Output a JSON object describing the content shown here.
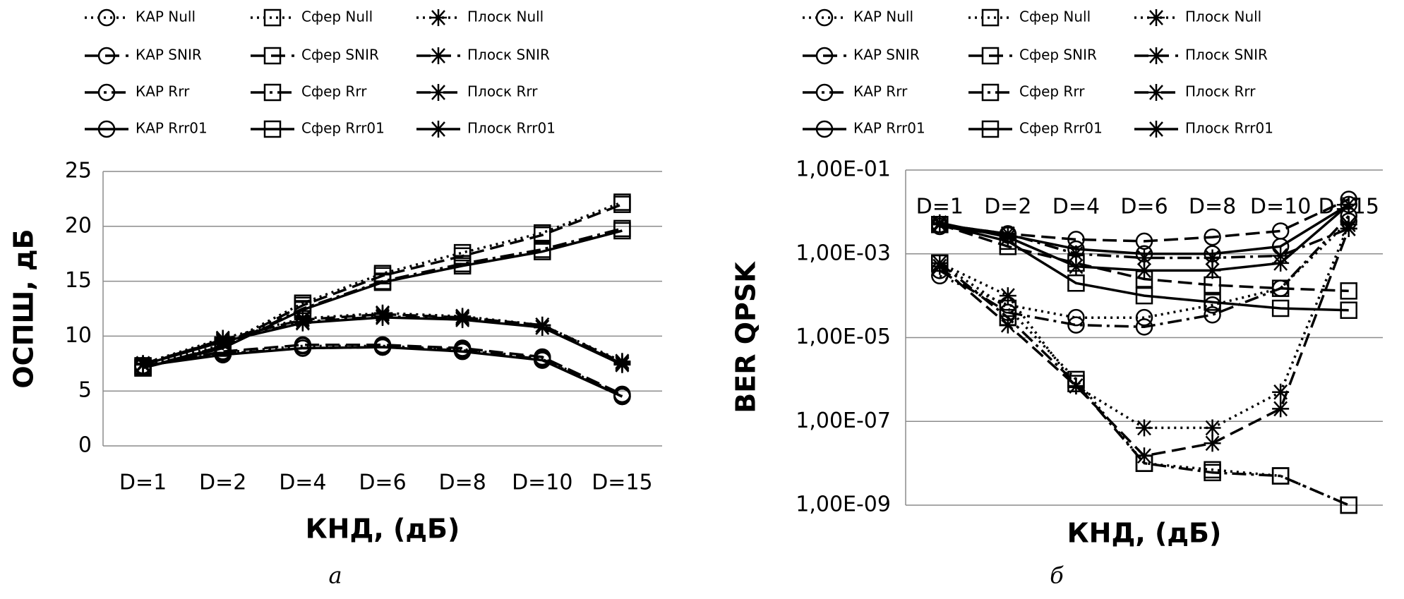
{
  "chart_data": [
    {
      "type": "line",
      "y_label": "ОСПШ, дБ",
      "x_label": "КНД, (дБ)",
      "caption": "а",
      "categories": [
        "D=1",
        "D=2",
        "D=4",
        "D=6",
        "D=8",
        "D=10",
        "D=15"
      ],
      "ylim": [
        0,
        25
      ],
      "yticks": [
        0,
        5,
        10,
        15,
        20,
        25
      ],
      "grid": true,
      "series": [
        {
          "name": "КАР Null",
          "color": "#000000",
          "dash": "dotted",
          "marker": "circle",
          "values": [
            7.3,
            8.5,
            9.1,
            9.1,
            8.8,
            8.0,
            4.6
          ]
        },
        {
          "name": "Сфер Null",
          "color": "#000000",
          "dash": "dotted",
          "marker": "square",
          "values": [
            7.3,
            9.2,
            13.0,
            15.7,
            17.6,
            19.4,
            22.2
          ]
        },
        {
          "name": "Плоск Null",
          "color": "#000000",
          "dash": "dotted",
          "marker": "star",
          "values": [
            7.5,
            9.8,
            11.6,
            12.1,
            11.8,
            11.0,
            7.7
          ]
        },
        {
          "name": "КАР SNIR",
          "color": "#000000",
          "dash": "dashed",
          "marker": "circle",
          "values": [
            7.2,
            8.6,
            9.2,
            9.2,
            8.9,
            8.1,
            4.7
          ]
        },
        {
          "name": "Сфер SNIR",
          "color": "#000000",
          "dash": "dashed",
          "marker": "square",
          "values": [
            7.1,
            9.1,
            12.8,
            15.5,
            17.3,
            19.2,
            22.0
          ]
        },
        {
          "name": "Плоск SNIR",
          "color": "#000000",
          "dash": "dashed",
          "marker": "star",
          "values": [
            7.4,
            9.7,
            11.5,
            12.0,
            11.7,
            11.0,
            7.6
          ]
        },
        {
          "name": "КАР Rrr",
          "color": "#000000",
          "dash": "dashdot",
          "marker": "circle",
          "values": [
            7.3,
            8.4,
            8.9,
            9.0,
            8.7,
            7.9,
            4.5
          ]
        },
        {
          "name": "Сфер Rrr",
          "color": "#000000",
          "dash": "dashdot",
          "marker": "square",
          "values": [
            7.2,
            9.0,
            12.5,
            15.0,
            16.6,
            17.9,
            19.8
          ]
        },
        {
          "name": "Плоск Rrr",
          "color": "#000000",
          "dash": "dashdot",
          "marker": "star",
          "values": [
            7.5,
            9.6,
            11.3,
            11.8,
            11.6,
            10.8,
            7.5
          ]
        },
        {
          "name": "КАР Rrr01",
          "color": "#000000",
          "dash": "solid",
          "marker": "circle",
          "values": [
            7.3,
            8.3,
            8.9,
            9.0,
            8.6,
            7.8,
            4.5
          ]
        },
        {
          "name": "Сфер Rrr01",
          "color": "#000000",
          "dash": "solid",
          "marker": "square",
          "values": [
            7.1,
            8.9,
            12.4,
            14.9,
            16.4,
            17.7,
            19.6
          ]
        },
        {
          "name": "Плоск Rrr01",
          "color": "#000000",
          "dash": "solid",
          "marker": "star",
          "values": [
            7.4,
            9.5,
            11.2,
            11.7,
            11.5,
            10.8,
            7.4
          ]
        }
      ]
    },
    {
      "type": "line",
      "y_label": "BER QPSK",
      "x_label": "КНД, (дБ)",
      "caption": "б",
      "log_scale": true,
      "categories": [
        "D=1",
        "D=2",
        "D=4",
        "D=6",
        "D=8",
        "D=10",
        "D=15"
      ],
      "ylim": [
        1e-09,
        0.1
      ],
      "yticks": [
        {
          "value": 1e-09,
          "label": "1,00E-09"
        },
        {
          "value": 1e-07,
          "label": "1,00E-07"
        },
        {
          "value": 1e-05,
          "label": "1,00E-05"
        },
        {
          "value": 0.001,
          "label": "1,00E-03"
        },
        {
          "value": 0.1,
          "label": "1,00E-01"
        }
      ],
      "grid": true,
      "series": [
        {
          "name": "КАР Null",
          "color": "#000000",
          "dash": "dotted",
          "marker": "circle",
          "values": [
            0.0003,
            6e-05,
            3e-05,
            3e-05,
            6e-05,
            0.00015,
            0.006
          ]
        },
        {
          "name": "Сфер Null",
          "color": "#000000",
          "dash": "dotted",
          "marker": "square",
          "values": [
            0.0006,
            5e-05,
            1e-06,
            1e-08,
            7e-09,
            5e-09,
            1e-09
          ]
        },
        {
          "name": "Плоск Null",
          "color": "#000000",
          "dash": "dotted",
          "marker": "star",
          "values": [
            0.0006,
            0.0001,
            7e-07,
            7e-08,
            7e-08,
            5e-07,
            0.005
          ]
        },
        {
          "name": "КАР SNIR",
          "color": "#000000",
          "dash": "dashed",
          "marker": "circle",
          "values": [
            0.005,
            0.003,
            0.0022,
            0.002,
            0.0025,
            0.0035,
            0.02
          ]
        },
        {
          "name": "Сфер SNIR",
          "color": "#000000",
          "dash": "dashed",
          "marker": "square",
          "values": [
            0.005,
            0.0015,
            0.0006,
            0.00025,
            0.00018,
            0.00015,
            0.00013
          ]
        },
        {
          "name": "Плоск SNIR",
          "color": "#000000",
          "dash": "dashed",
          "marker": "star",
          "values": [
            0.0005,
            2e-05,
            7e-07,
            1.5e-08,
            3e-08,
            2e-07,
            0.004
          ]
        },
        {
          "name": "КАР Rrr",
          "color": "#000000",
          "dash": "dashdot",
          "marker": "circle",
          "values": [
            0.0004,
            4e-05,
            2e-05,
            1.8e-05,
            3.5e-05,
            0.00015,
            0.008
          ]
        },
        {
          "name": "Сфер Rrr",
          "color": "#000000",
          "dash": "dashdot",
          "marker": "square",
          "values": [
            0.0006,
            3e-05,
            8e-07,
            1e-08,
            6e-09,
            5e-09,
            1e-09
          ]
        },
        {
          "name": "Плоск Rrr",
          "color": "#000000",
          "dash": "dashdot",
          "marker": "star",
          "values": [
            0.005,
            0.003,
            0.001,
            0.0008,
            0.0008,
            0.0009,
            0.004
          ]
        },
        {
          "name": "КАР Rrr01",
          "color": "#000000",
          "dash": "solid",
          "marker": "circle",
          "values": [
            0.0045,
            0.0028,
            0.0013,
            0.001,
            0.001,
            0.0015,
            0.015
          ]
        },
        {
          "name": "Сфер Rrr01",
          "color": "#000000",
          "dash": "solid",
          "marker": "square",
          "values": [
            0.005,
            0.002,
            0.0002,
            0.0001,
            7e-05,
            5e-05,
            4.5e-05
          ]
        },
        {
          "name": "Плоск Rrr01",
          "color": "#000000",
          "dash": "solid",
          "marker": "star",
          "values": [
            0.0055,
            0.0025,
            0.0005,
            0.0004,
            0.0004,
            0.0006,
            0.015
          ]
        }
      ]
    }
  ]
}
